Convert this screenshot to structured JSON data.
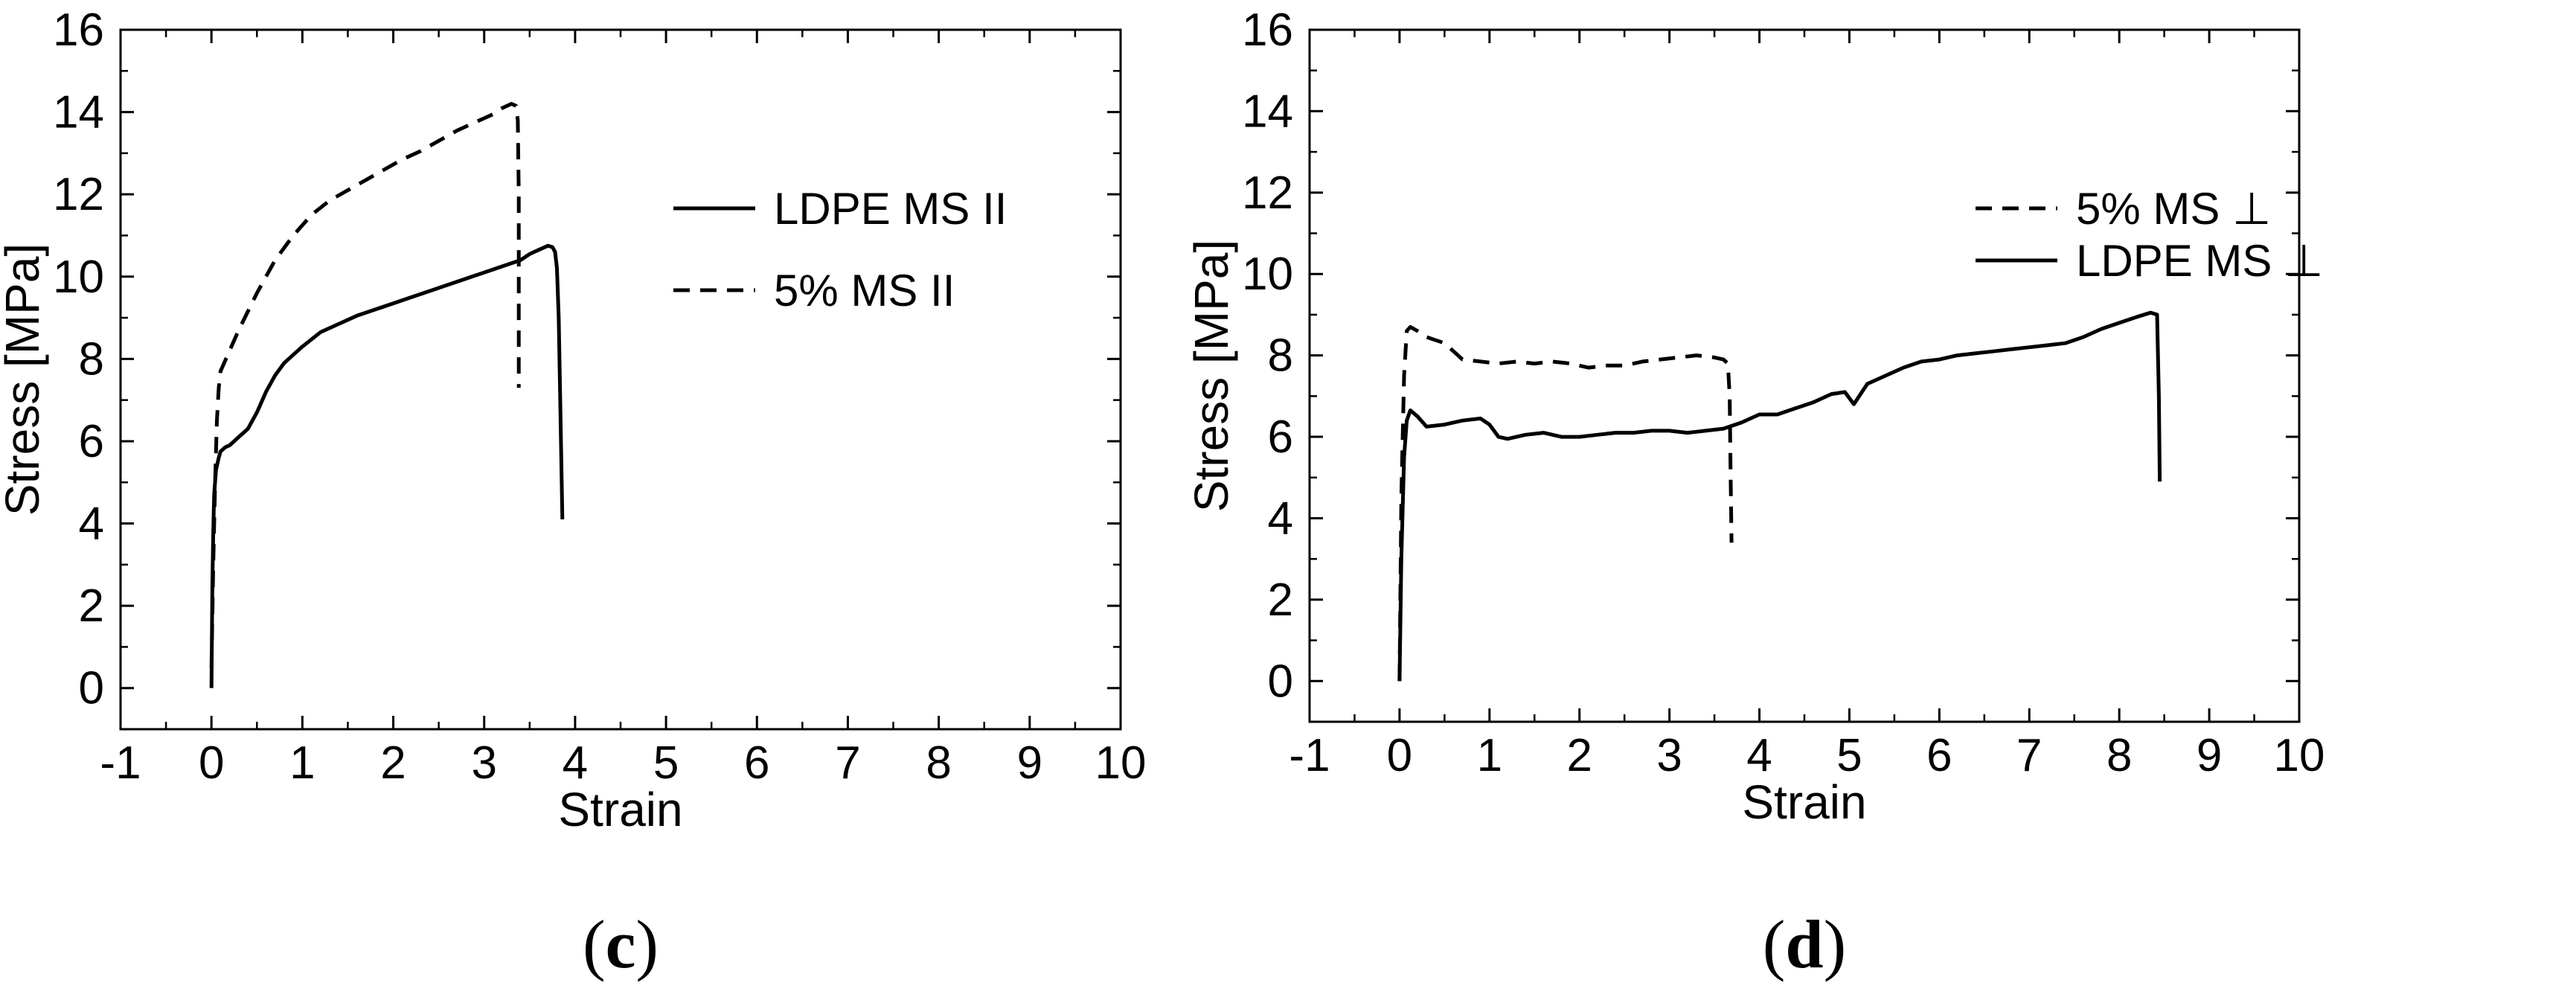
{
  "chart_data": [
    {
      "type": "line",
      "panel": "c",
      "caption_open": "(",
      "caption_letter": "c",
      "caption_close": ")",
      "xlabel": "Strain",
      "ylabel": "Stress [MPa]",
      "xlim": [
        -1,
        10
      ],
      "ylim": [
        -1,
        16
      ],
      "xticks": [
        -1,
        0,
        1,
        2,
        3,
        4,
        5,
        6,
        7,
        8,
        9,
        10
      ],
      "yticks": [
        0,
        2,
        4,
        6,
        8,
        10,
        12,
        14,
        16
      ],
      "legend_position": "top-right",
      "series": [
        {
          "name": "LDPE MS II",
          "style": "solid",
          "x": [
            0.0,
            0.01,
            0.02,
            0.03,
            0.05,
            0.08,
            0.1,
            0.15,
            0.2,
            0.3,
            0.4,
            0.5,
            0.6,
            0.7,
            0.8,
            0.9,
            1.0,
            1.2,
            1.4,
            1.6,
            1.8,
            2.0,
            2.2,
            2.4,
            2.6,
            2.8,
            3.0,
            3.2,
            3.4,
            3.5,
            3.6,
            3.7,
            3.75,
            3.78,
            3.8,
            3.82,
            3.84,
            3.86
          ],
          "y": [
            0.0,
            2.5,
            3.8,
            4.7,
            5.3,
            5.6,
            5.75,
            5.85,
            5.9,
            6.1,
            6.3,
            6.7,
            7.2,
            7.6,
            7.9,
            8.1,
            8.3,
            8.65,
            8.85,
            9.05,
            9.2,
            9.35,
            9.5,
            9.65,
            9.8,
            9.95,
            10.1,
            10.25,
            10.4,
            10.55,
            10.65,
            10.75,
            10.72,
            10.6,
            10.2,
            9.0,
            6.5,
            4.1
          ]
        },
        {
          "name": "5% MS II",
          "style": "dashed",
          "x": [
            0.0,
            0.02,
            0.04,
            0.06,
            0.08,
            0.1,
            0.2,
            0.3,
            0.5,
            0.7,
            0.9,
            1.1,
            1.3,
            1.5,
            1.7,
            1.9,
            2.1,
            2.3,
            2.5,
            2.7,
            2.9,
            3.1,
            3.2,
            3.3,
            3.35,
            3.37,
            3.38,
            3.38,
            3.38
          ],
          "y": [
            0.5,
            3.0,
            5.0,
            6.5,
            7.3,
            7.7,
            8.2,
            8.7,
            9.6,
            10.4,
            11.0,
            11.5,
            11.85,
            12.1,
            12.35,
            12.6,
            12.85,
            13.05,
            13.3,
            13.55,
            13.75,
            13.95,
            14.1,
            14.2,
            14.15,
            13.8,
            12.0,
            9.5,
            7.3
          ]
        }
      ]
    },
    {
      "type": "line",
      "panel": "d",
      "caption_open": "(",
      "caption_letter": "d",
      "caption_close": ")",
      "xlabel": "Strain",
      "ylabel": "Stress [MPa]",
      "xlim": [
        -1,
        10
      ],
      "ylim": [
        -1,
        16
      ],
      "xticks": [
        -1,
        0,
        1,
        2,
        3,
        4,
        5,
        6,
        7,
        8,
        9,
        10
      ],
      "yticks": [
        0,
        2,
        4,
        6,
        8,
        10,
        12,
        14,
        16
      ],
      "legend_position": "top-right",
      "series": [
        {
          "name": "5% MS ⊥",
          "style": "dashed",
          "x": [
            0.0,
            0.02,
            0.05,
            0.08,
            0.12,
            0.2,
            0.3,
            0.5,
            0.6,
            0.7,
            0.9,
            1.1,
            1.3,
            1.5,
            1.7,
            1.9,
            2.1,
            2.3,
            2.5,
            2.7,
            2.9,
            3.1,
            3.3,
            3.5,
            3.6,
            3.65,
            3.67,
            3.68,
            3.69
          ],
          "y": [
            0.0,
            4.5,
            7.5,
            8.6,
            8.7,
            8.6,
            8.45,
            8.3,
            8.1,
            7.9,
            7.85,
            7.8,
            7.85,
            7.8,
            7.85,
            7.8,
            7.7,
            7.75,
            7.75,
            7.85,
            7.9,
            7.95,
            8.0,
            7.95,
            7.9,
            7.8,
            7.0,
            5.0,
            3.4
          ]
        },
        {
          "name": "LDPE MS ⊥",
          "style": "solid",
          "x": [
            0.0,
            0.02,
            0.05,
            0.08,
            0.12,
            0.2,
            0.3,
            0.5,
            0.7,
            0.9,
            1.0,
            1.1,
            1.2,
            1.4,
            1.6,
            1.8,
            2.0,
            2.2,
            2.4,
            2.6,
            2.8,
            3.0,
            3.2,
            3.4,
            3.6,
            3.8,
            4.0,
            4.2,
            4.4,
            4.6,
            4.8,
            4.95,
            5.05,
            5.2,
            5.4,
            5.6,
            5.8,
            6.0,
            6.2,
            6.4,
            6.6,
            6.8,
            7.0,
            7.2,
            7.4,
            7.6,
            7.8,
            8.0,
            8.2,
            8.35,
            8.42,
            8.44,
            8.45
          ],
          "y": [
            0.0,
            3.0,
            5.5,
            6.4,
            6.65,
            6.5,
            6.25,
            6.3,
            6.4,
            6.45,
            6.3,
            6.0,
            5.95,
            6.05,
            6.1,
            6.0,
            6.0,
            6.05,
            6.1,
            6.1,
            6.15,
            6.15,
            6.1,
            6.15,
            6.2,
            6.35,
            6.55,
            6.55,
            6.7,
            6.85,
            7.05,
            7.1,
            6.8,
            7.3,
            7.5,
            7.7,
            7.85,
            7.9,
            8.0,
            8.05,
            8.1,
            8.15,
            8.2,
            8.25,
            8.3,
            8.45,
            8.65,
            8.8,
            8.95,
            9.05,
            9.0,
            7.0,
            4.9
          ]
        }
      ]
    }
  ]
}
